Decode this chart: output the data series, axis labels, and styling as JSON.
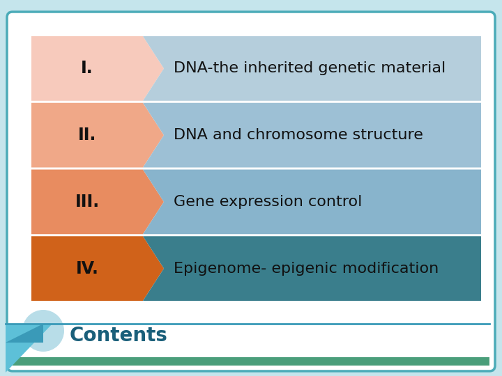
{
  "title": "Contents",
  "items": [
    {
      "numeral": "I.",
      "text": "DNA-the inherited genetic material",
      "left_color": "#F7CABC",
      "right_color": "#B5CEDC"
    },
    {
      "numeral": "II.",
      "text": "DNA and chromosome structure",
      "left_color": "#F0A888",
      "right_color": "#9DC0D5"
    },
    {
      "numeral": "III.",
      "text": "Gene expression control",
      "left_color": "#E88C60",
      "right_color": "#88B4CC"
    },
    {
      "numeral": "IV.",
      "text": "Epigenome- epigenic modification",
      "left_color": "#D0621A",
      "right_color": "#3A7E8C"
    }
  ],
  "outer_bg": "#C5E5EC",
  "white_box_color": "#FFFFFF",
  "border_color": "#4AABB8",
  "bottom_bar_color": "#4A9E7A",
  "title_color": "#1A5F7A",
  "title_fontsize": 20,
  "numeral_fontsize": 17,
  "text_fontsize": 16,
  "fig_width": 7.2,
  "fig_height": 5.4,
  "dpi": 100
}
